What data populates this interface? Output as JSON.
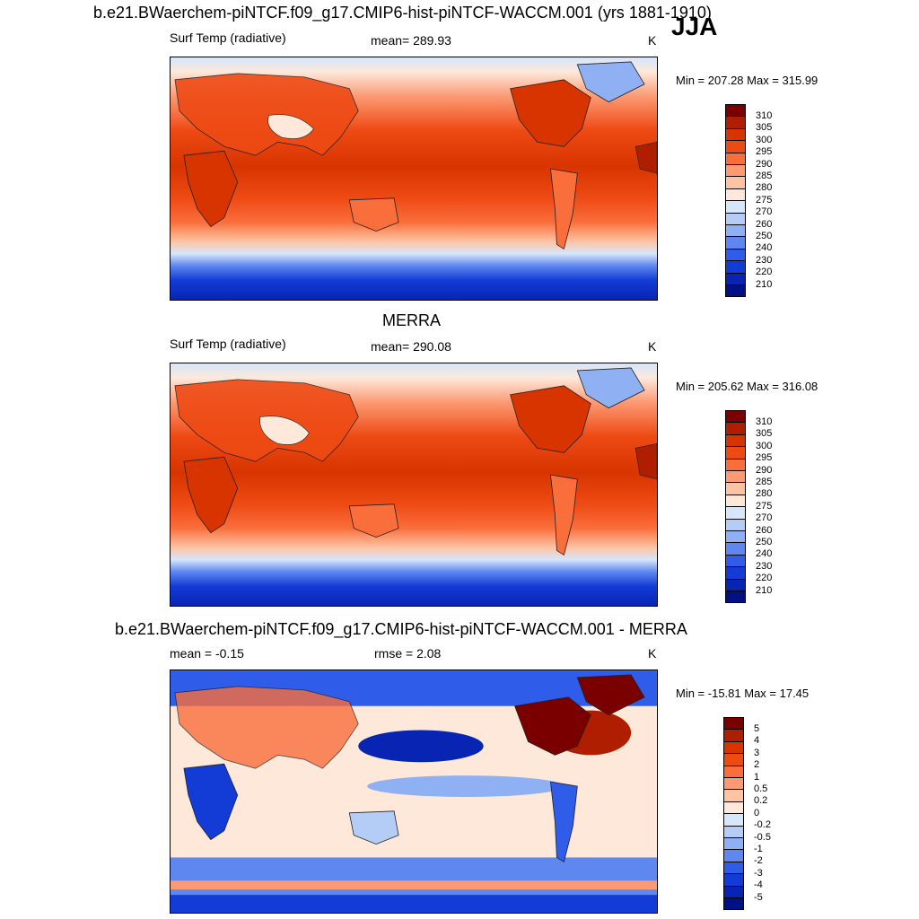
{
  "season": "JJA",
  "chart_data": [
    {
      "type": "heatmap",
      "panel": "model",
      "title": "b.e21.BWaerchem-piNTCF.f09_g17.CMIP6-hist-piNTCF-WACCM.001 (yrs 1881-1910)",
      "left_label": "Surf Temp (radiative)",
      "center_label": "mean= 289.93",
      "mean": 289.93,
      "units": "K",
      "minmax_label": "Min = 207.28 Max = 315.99",
      "min": 207.28,
      "max": 315.99,
      "colorbar": {
        "levels": [
          "310",
          "305",
          "300",
          "295",
          "290",
          "285",
          "280",
          "275",
          "270",
          "260",
          "250",
          "240",
          "230",
          "220",
          "210"
        ],
        "colors": [
          "#7a0000",
          "#b01e00",
          "#d83400",
          "#ee4a14",
          "#fa6e3c",
          "#fc9a74",
          "#fdc4a4",
          "#fde8da",
          "#d6e6fb",
          "#b4cdf6",
          "#8fb0f3",
          "#5e87ef",
          "#2f5ce8",
          "#133bd6",
          "#0824b3",
          "#001183"
        ]
      }
    },
    {
      "type": "heatmap",
      "panel": "observations",
      "title": "MERRA",
      "left_label": "Surf Temp (radiative)",
      "center_label": "mean= 290.08",
      "mean": 290.08,
      "units": "K",
      "minmax_label": "Min = 205.62 Max = 316.08",
      "min": 205.62,
      "max": 316.08,
      "colorbar": {
        "levels": [
          "310",
          "305",
          "300",
          "295",
          "290",
          "285",
          "280",
          "275",
          "270",
          "260",
          "250",
          "240",
          "230",
          "220",
          "210"
        ],
        "colors": [
          "#7a0000",
          "#b01e00",
          "#d83400",
          "#ee4a14",
          "#fa6e3c",
          "#fc9a74",
          "#fdc4a4",
          "#fde8da",
          "#d6e6fb",
          "#b4cdf6",
          "#8fb0f3",
          "#5e87ef",
          "#2f5ce8",
          "#133bd6",
          "#0824b3",
          "#001183"
        ]
      }
    },
    {
      "type": "heatmap",
      "panel": "difference",
      "title": "b.e21.BWaerchem-piNTCF.f09_g17.CMIP6-hist-piNTCF-WACCM.001 - MERRA",
      "left_label": "mean =  -0.15",
      "center_label": "rmse =   2.08",
      "mean": -0.15,
      "rmse": 2.08,
      "units": "K",
      "minmax_label": "Min = -15.81 Max =  17.45",
      "min": -15.81,
      "max": 17.45,
      "colorbar": {
        "levels": [
          "5",
          "4",
          "3",
          "2",
          "1",
          "0.5",
          "0.2",
          "0",
          "-0.2",
          "-0.5",
          "-1",
          "-2",
          "-3",
          "-4",
          "-5"
        ],
        "colors": [
          "#7a0000",
          "#b01e00",
          "#d83400",
          "#ee4a14",
          "#fa6e3c",
          "#fc9a74",
          "#fdc4a4",
          "#fde8da",
          "#d6e6fb",
          "#b4cdf6",
          "#8fb0f3",
          "#5e87ef",
          "#2f5ce8",
          "#133bd6",
          "#0824b3",
          "#001183"
        ]
      }
    }
  ]
}
